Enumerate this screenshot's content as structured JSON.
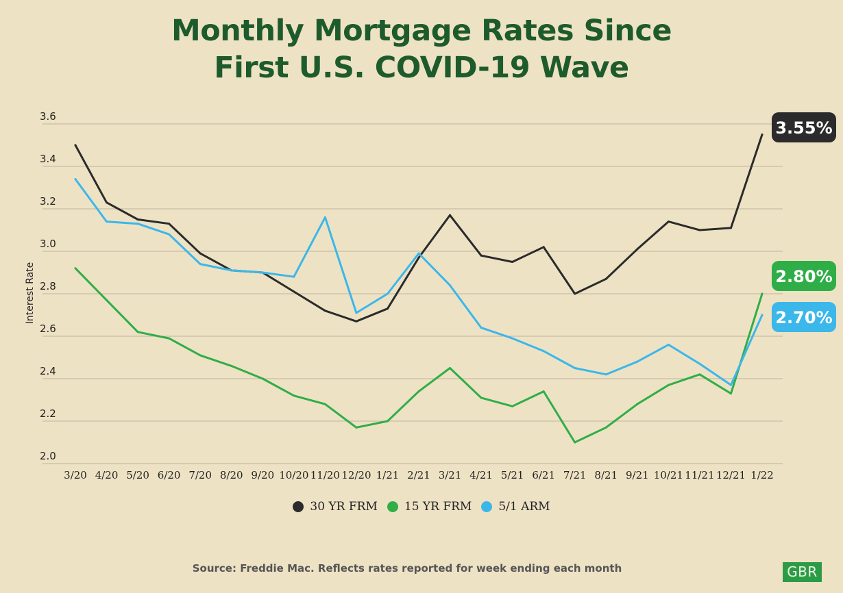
{
  "title_line1": "Monthly Mortgage Rates Since",
  "title_line2": "First U.S. COVID-19 Wave",
  "source": "Source: Freddie Mac. Reflects rates reported for week ending each month",
  "logo_text": "GBR",
  "chart_data": {
    "type": "line",
    "title": "Monthly Mortgage Rates Since First U.S. COVID-19 Wave",
    "xlabel": "",
    "ylabel": "Interest Rate",
    "ylim": [
      2.0,
      3.6
    ],
    "yticks": [
      "3.6",
      "3.4",
      "3.2",
      "3.0",
      "2.8",
      "2.6",
      "2.4",
      "2.2",
      "2.0"
    ],
    "grid": true,
    "legend_position": "bottom",
    "categories": [
      "3/20",
      "4/20",
      "5/20",
      "6/20",
      "7/20",
      "8/20",
      "9/20",
      "10/20",
      "11/20",
      "12/20",
      "1/21",
      "2/21",
      "3/21",
      "4/21",
      "5/21",
      "6/21",
      "7/21",
      "8/21",
      "9/21",
      "10/21",
      "11/21",
      "12/21",
      "1/22"
    ],
    "series": [
      {
        "name": "30 YR FRM",
        "color": "#2B2B2B",
        "values": [
          3.5,
          3.23,
          3.15,
          3.13,
          2.99,
          2.91,
          2.9,
          2.81,
          2.72,
          2.67,
          2.73,
          2.97,
          3.17,
          2.98,
          2.95,
          3.02,
          2.8,
          2.87,
          3.01,
          3.14,
          3.1,
          3.11,
          3.55
        ],
        "end_label": "3.55%"
      },
      {
        "name": "15 YR FRM",
        "color": "#2FAE47",
        "values": [
          2.92,
          2.77,
          2.62,
          2.59,
          2.51,
          2.46,
          2.4,
          2.32,
          2.28,
          2.17,
          2.2,
          2.34,
          2.45,
          2.31,
          2.27,
          2.34,
          2.1,
          2.17,
          2.28,
          2.37,
          2.42,
          2.33,
          2.8
        ],
        "end_label": "2.80%"
      },
      {
        "name": "5/1 ARM",
        "color": "#3BB7EA",
        "values": [
          3.34,
          3.14,
          3.13,
          3.08,
          2.94,
          2.91,
          2.9,
          2.88,
          3.16,
          2.71,
          2.8,
          2.99,
          2.84,
          2.64,
          2.59,
          2.53,
          2.45,
          2.42,
          2.48,
          2.56,
          2.47,
          2.37,
          2.7
        ],
        "end_label": "2.70%"
      }
    ]
  }
}
